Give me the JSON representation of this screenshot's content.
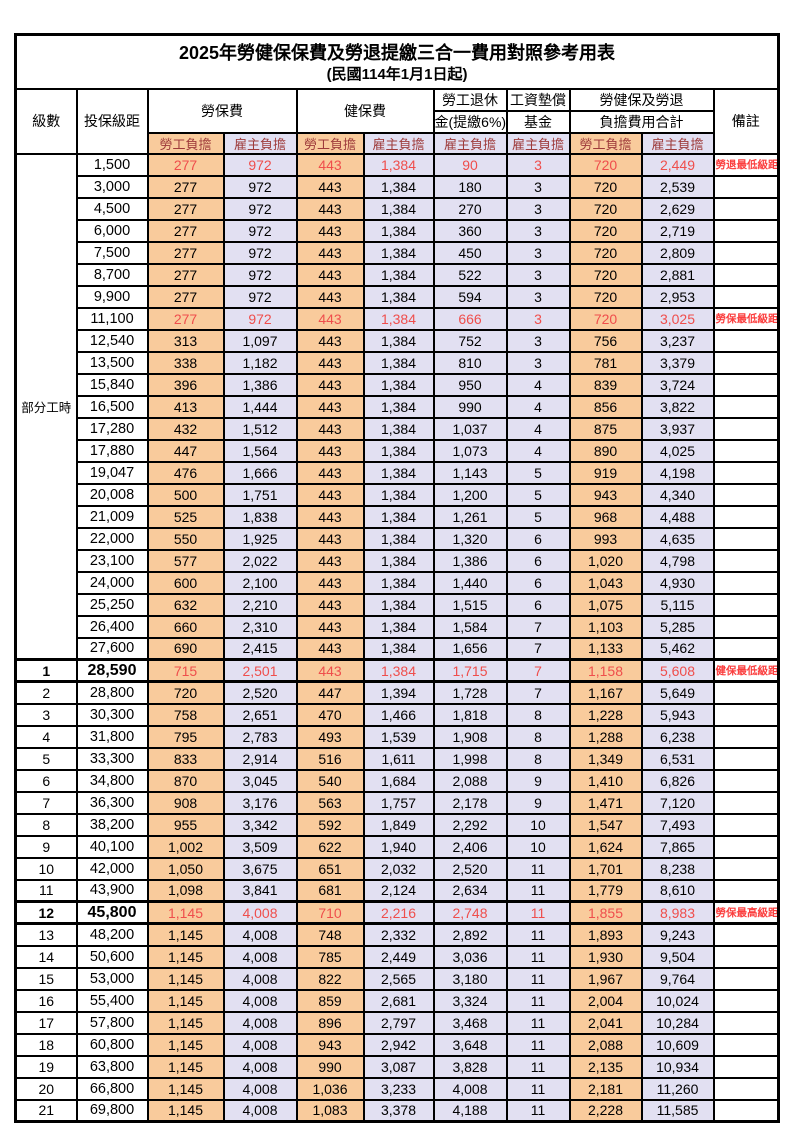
{
  "title": "2025年勞健保保費及勞退提繳三合一費用對照參考用表",
  "subtitle": "(民國114年1月1日起)",
  "part_time_label": "部分工時",
  "part_time_span": 23,
  "colors": {
    "employee_bg": "#f9cb9c",
    "employer_bg": "#e2e0f2",
    "highlight_value_text": "#ef4e4c",
    "note_text": "#fb3e3e",
    "subheader_text": "#9e3b3b",
    "border": "#000000"
  },
  "header": {
    "level": "級數",
    "bracket": "投保級距",
    "labor_group": "勞保費",
    "health_group": "健保費",
    "pension_line1": "勞工退休",
    "pension_line2": "金(提繳6%)",
    "wage_fund_line1": "工資墊償",
    "wage_fund_line2": "基金",
    "total_line1": "勞健保及勞退",
    "total_line2": "負擔費用合計",
    "remark": "備註",
    "employee": "勞工負擔",
    "employer": "雇主負擔"
  },
  "rows": [
    {
      "lv": "",
      "amt": "1,500",
      "v": [
        "277",
        "972",
        "443",
        "1,384",
        "90",
        "3",
        "720",
        "2,449"
      ],
      "note": "勞退最低級距",
      "red": true,
      "em": false
    },
    {
      "lv": "",
      "amt": "3,000",
      "v": [
        "277",
        "972",
        "443",
        "1,384",
        "180",
        "3",
        "720",
        "2,539"
      ],
      "note": "",
      "red": false,
      "em": false
    },
    {
      "lv": "",
      "amt": "4,500",
      "v": [
        "277",
        "972",
        "443",
        "1,384",
        "270",
        "3",
        "720",
        "2,629"
      ],
      "note": "",
      "red": false,
      "em": false
    },
    {
      "lv": "",
      "amt": "6,000",
      "v": [
        "277",
        "972",
        "443",
        "1,384",
        "360",
        "3",
        "720",
        "2,719"
      ],
      "note": "",
      "red": false,
      "em": false
    },
    {
      "lv": "",
      "amt": "7,500",
      "v": [
        "277",
        "972",
        "443",
        "1,384",
        "450",
        "3",
        "720",
        "2,809"
      ],
      "note": "",
      "red": false,
      "em": false
    },
    {
      "lv": "",
      "amt": "8,700",
      "v": [
        "277",
        "972",
        "443",
        "1,384",
        "522",
        "3",
        "720",
        "2,881"
      ],
      "note": "",
      "red": false,
      "em": false
    },
    {
      "lv": "",
      "amt": "9,900",
      "v": [
        "277",
        "972",
        "443",
        "1,384",
        "594",
        "3",
        "720",
        "2,953"
      ],
      "note": "",
      "red": false,
      "em": false
    },
    {
      "lv": "",
      "amt": "11,100",
      "v": [
        "277",
        "972",
        "443",
        "1,384",
        "666",
        "3",
        "720",
        "3,025"
      ],
      "note": "勞保最低級距",
      "red": true,
      "em": false
    },
    {
      "lv": "",
      "amt": "12,540",
      "v": [
        "313",
        "1,097",
        "443",
        "1,384",
        "752",
        "3",
        "756",
        "3,237"
      ],
      "note": "",
      "red": false,
      "em": false
    },
    {
      "lv": "",
      "amt": "13,500",
      "v": [
        "338",
        "1,182",
        "443",
        "1,384",
        "810",
        "3",
        "781",
        "3,379"
      ],
      "note": "",
      "red": false,
      "em": false
    },
    {
      "lv": "",
      "amt": "15,840",
      "v": [
        "396",
        "1,386",
        "443",
        "1,384",
        "950",
        "4",
        "839",
        "3,724"
      ],
      "note": "",
      "red": false,
      "em": false
    },
    {
      "lv": "",
      "amt": "16,500",
      "v": [
        "413",
        "1,444",
        "443",
        "1,384",
        "990",
        "4",
        "856",
        "3,822"
      ],
      "note": "",
      "red": false,
      "em": false
    },
    {
      "lv": "",
      "amt": "17,280",
      "v": [
        "432",
        "1,512",
        "443",
        "1,384",
        "1,037",
        "4",
        "875",
        "3,937"
      ],
      "note": "",
      "red": false,
      "em": false
    },
    {
      "lv": "",
      "amt": "17,880",
      "v": [
        "447",
        "1,564",
        "443",
        "1,384",
        "1,073",
        "4",
        "890",
        "4,025"
      ],
      "note": "",
      "red": false,
      "em": false
    },
    {
      "lv": "",
      "amt": "19,047",
      "v": [
        "476",
        "1,666",
        "443",
        "1,384",
        "1,143",
        "5",
        "919",
        "4,198"
      ],
      "note": "",
      "red": false,
      "em": false
    },
    {
      "lv": "",
      "amt": "20,008",
      "v": [
        "500",
        "1,751",
        "443",
        "1,384",
        "1,200",
        "5",
        "943",
        "4,340"
      ],
      "note": "",
      "red": false,
      "em": false
    },
    {
      "lv": "",
      "amt": "21,009",
      "v": [
        "525",
        "1,838",
        "443",
        "1,384",
        "1,261",
        "5",
        "968",
        "4,488"
      ],
      "note": "",
      "red": false,
      "em": false
    },
    {
      "lv": "",
      "amt": "22,000",
      "v": [
        "550",
        "1,925",
        "443",
        "1,384",
        "1,320",
        "6",
        "993",
        "4,635"
      ],
      "note": "",
      "red": false,
      "em": false
    },
    {
      "lv": "",
      "amt": "23,100",
      "v": [
        "577",
        "2,022",
        "443",
        "1,384",
        "1,386",
        "6",
        "1,020",
        "4,798"
      ],
      "note": "",
      "red": false,
      "em": false
    },
    {
      "lv": "",
      "amt": "24,000",
      "v": [
        "600",
        "2,100",
        "443",
        "1,384",
        "1,440",
        "6",
        "1,043",
        "4,930"
      ],
      "note": "",
      "red": false,
      "em": false
    },
    {
      "lv": "",
      "amt": "25,250",
      "v": [
        "632",
        "2,210",
        "443",
        "1,384",
        "1,515",
        "6",
        "1,075",
        "5,115"
      ],
      "note": "",
      "red": false,
      "em": false
    },
    {
      "lv": "",
      "amt": "26,400",
      "v": [
        "660",
        "2,310",
        "443",
        "1,384",
        "1,584",
        "7",
        "1,103",
        "5,285"
      ],
      "note": "",
      "red": false,
      "em": false
    },
    {
      "lv": "",
      "amt": "27,600",
      "v": [
        "690",
        "2,415",
        "443",
        "1,384",
        "1,656",
        "7",
        "1,133",
        "5,462"
      ],
      "note": "",
      "red": false,
      "em": false
    },
    {
      "lv": "1",
      "amt": "28,590",
      "v": [
        "715",
        "2,501",
        "443",
        "1,384",
        "1,715",
        "7",
        "1,158",
        "5,608"
      ],
      "note": "健保最低級距",
      "red": true,
      "em": true
    },
    {
      "lv": "2",
      "amt": "28,800",
      "v": [
        "720",
        "2,520",
        "447",
        "1,394",
        "1,728",
        "7",
        "1,167",
        "5,649"
      ],
      "note": "",
      "red": false,
      "em": false
    },
    {
      "lv": "3",
      "amt": "30,300",
      "v": [
        "758",
        "2,651",
        "470",
        "1,466",
        "1,818",
        "8",
        "1,228",
        "5,943"
      ],
      "note": "",
      "red": false,
      "em": false
    },
    {
      "lv": "4",
      "amt": "31,800",
      "v": [
        "795",
        "2,783",
        "493",
        "1,539",
        "1,908",
        "8",
        "1,288",
        "6,238"
      ],
      "note": "",
      "red": false,
      "em": false
    },
    {
      "lv": "5",
      "amt": "33,300",
      "v": [
        "833",
        "2,914",
        "516",
        "1,611",
        "1,998",
        "8",
        "1,349",
        "6,531"
      ],
      "note": "",
      "red": false,
      "em": false
    },
    {
      "lv": "6",
      "amt": "34,800",
      "v": [
        "870",
        "3,045",
        "540",
        "1,684",
        "2,088",
        "9",
        "1,410",
        "6,826"
      ],
      "note": "",
      "red": false,
      "em": false
    },
    {
      "lv": "7",
      "amt": "36,300",
      "v": [
        "908",
        "3,176",
        "563",
        "1,757",
        "2,178",
        "9",
        "1,471",
        "7,120"
      ],
      "note": "",
      "red": false,
      "em": false
    },
    {
      "lv": "8",
      "amt": "38,200",
      "v": [
        "955",
        "3,342",
        "592",
        "1,849",
        "2,292",
        "10",
        "1,547",
        "7,493"
      ],
      "note": "",
      "red": false,
      "em": false
    },
    {
      "lv": "9",
      "amt": "40,100",
      "v": [
        "1,002",
        "3,509",
        "622",
        "1,940",
        "2,406",
        "10",
        "1,624",
        "7,865"
      ],
      "note": "",
      "red": false,
      "em": false
    },
    {
      "lv": "10",
      "amt": "42,000",
      "v": [
        "1,050",
        "3,675",
        "651",
        "2,032",
        "2,520",
        "11",
        "1,701",
        "8,238"
      ],
      "note": "",
      "red": false,
      "em": false
    },
    {
      "lv": "11",
      "amt": "43,900",
      "v": [
        "1,098",
        "3,841",
        "681",
        "2,124",
        "2,634",
        "11",
        "1,779",
        "8,610"
      ],
      "note": "",
      "red": false,
      "em": false
    },
    {
      "lv": "12",
      "amt": "45,800",
      "v": [
        "1,145",
        "4,008",
        "710",
        "2,216",
        "2,748",
        "11",
        "1,855",
        "8,983"
      ],
      "note": "勞保最高級距",
      "red": true,
      "em": true
    },
    {
      "lv": "13",
      "amt": "48,200",
      "v": [
        "1,145",
        "4,008",
        "748",
        "2,332",
        "2,892",
        "11",
        "1,893",
        "9,243"
      ],
      "note": "",
      "red": false,
      "em": false
    },
    {
      "lv": "14",
      "amt": "50,600",
      "v": [
        "1,145",
        "4,008",
        "785",
        "2,449",
        "3,036",
        "11",
        "1,930",
        "9,504"
      ],
      "note": "",
      "red": false,
      "em": false
    },
    {
      "lv": "15",
      "amt": "53,000",
      "v": [
        "1,145",
        "4,008",
        "822",
        "2,565",
        "3,180",
        "11",
        "1,967",
        "9,764"
      ],
      "note": "",
      "red": false,
      "em": false
    },
    {
      "lv": "16",
      "amt": "55,400",
      "v": [
        "1,145",
        "4,008",
        "859",
        "2,681",
        "3,324",
        "11",
        "2,004",
        "10,024"
      ],
      "note": "",
      "red": false,
      "em": false
    },
    {
      "lv": "17",
      "amt": "57,800",
      "v": [
        "1,145",
        "4,008",
        "896",
        "2,797",
        "3,468",
        "11",
        "2,041",
        "10,284"
      ],
      "note": "",
      "red": false,
      "em": false
    },
    {
      "lv": "18",
      "amt": "60,800",
      "v": [
        "1,145",
        "4,008",
        "943",
        "2,942",
        "3,648",
        "11",
        "2,088",
        "10,609"
      ],
      "note": "",
      "red": false,
      "em": false
    },
    {
      "lv": "19",
      "amt": "63,800",
      "v": [
        "1,145",
        "4,008",
        "990",
        "3,087",
        "3,828",
        "11",
        "2,135",
        "10,934"
      ],
      "note": "",
      "red": false,
      "em": false
    },
    {
      "lv": "20",
      "amt": "66,800",
      "v": [
        "1,145",
        "4,008",
        "1,036",
        "3,233",
        "4,008",
        "11",
        "2,181",
        "11,260"
      ],
      "note": "",
      "red": false,
      "em": false
    },
    {
      "lv": "21",
      "amt": "69,800",
      "v": [
        "1,145",
        "4,008",
        "1,083",
        "3,378",
        "4,188",
        "11",
        "2,228",
        "11,585"
      ],
      "note": "",
      "red": false,
      "em": false
    }
  ]
}
